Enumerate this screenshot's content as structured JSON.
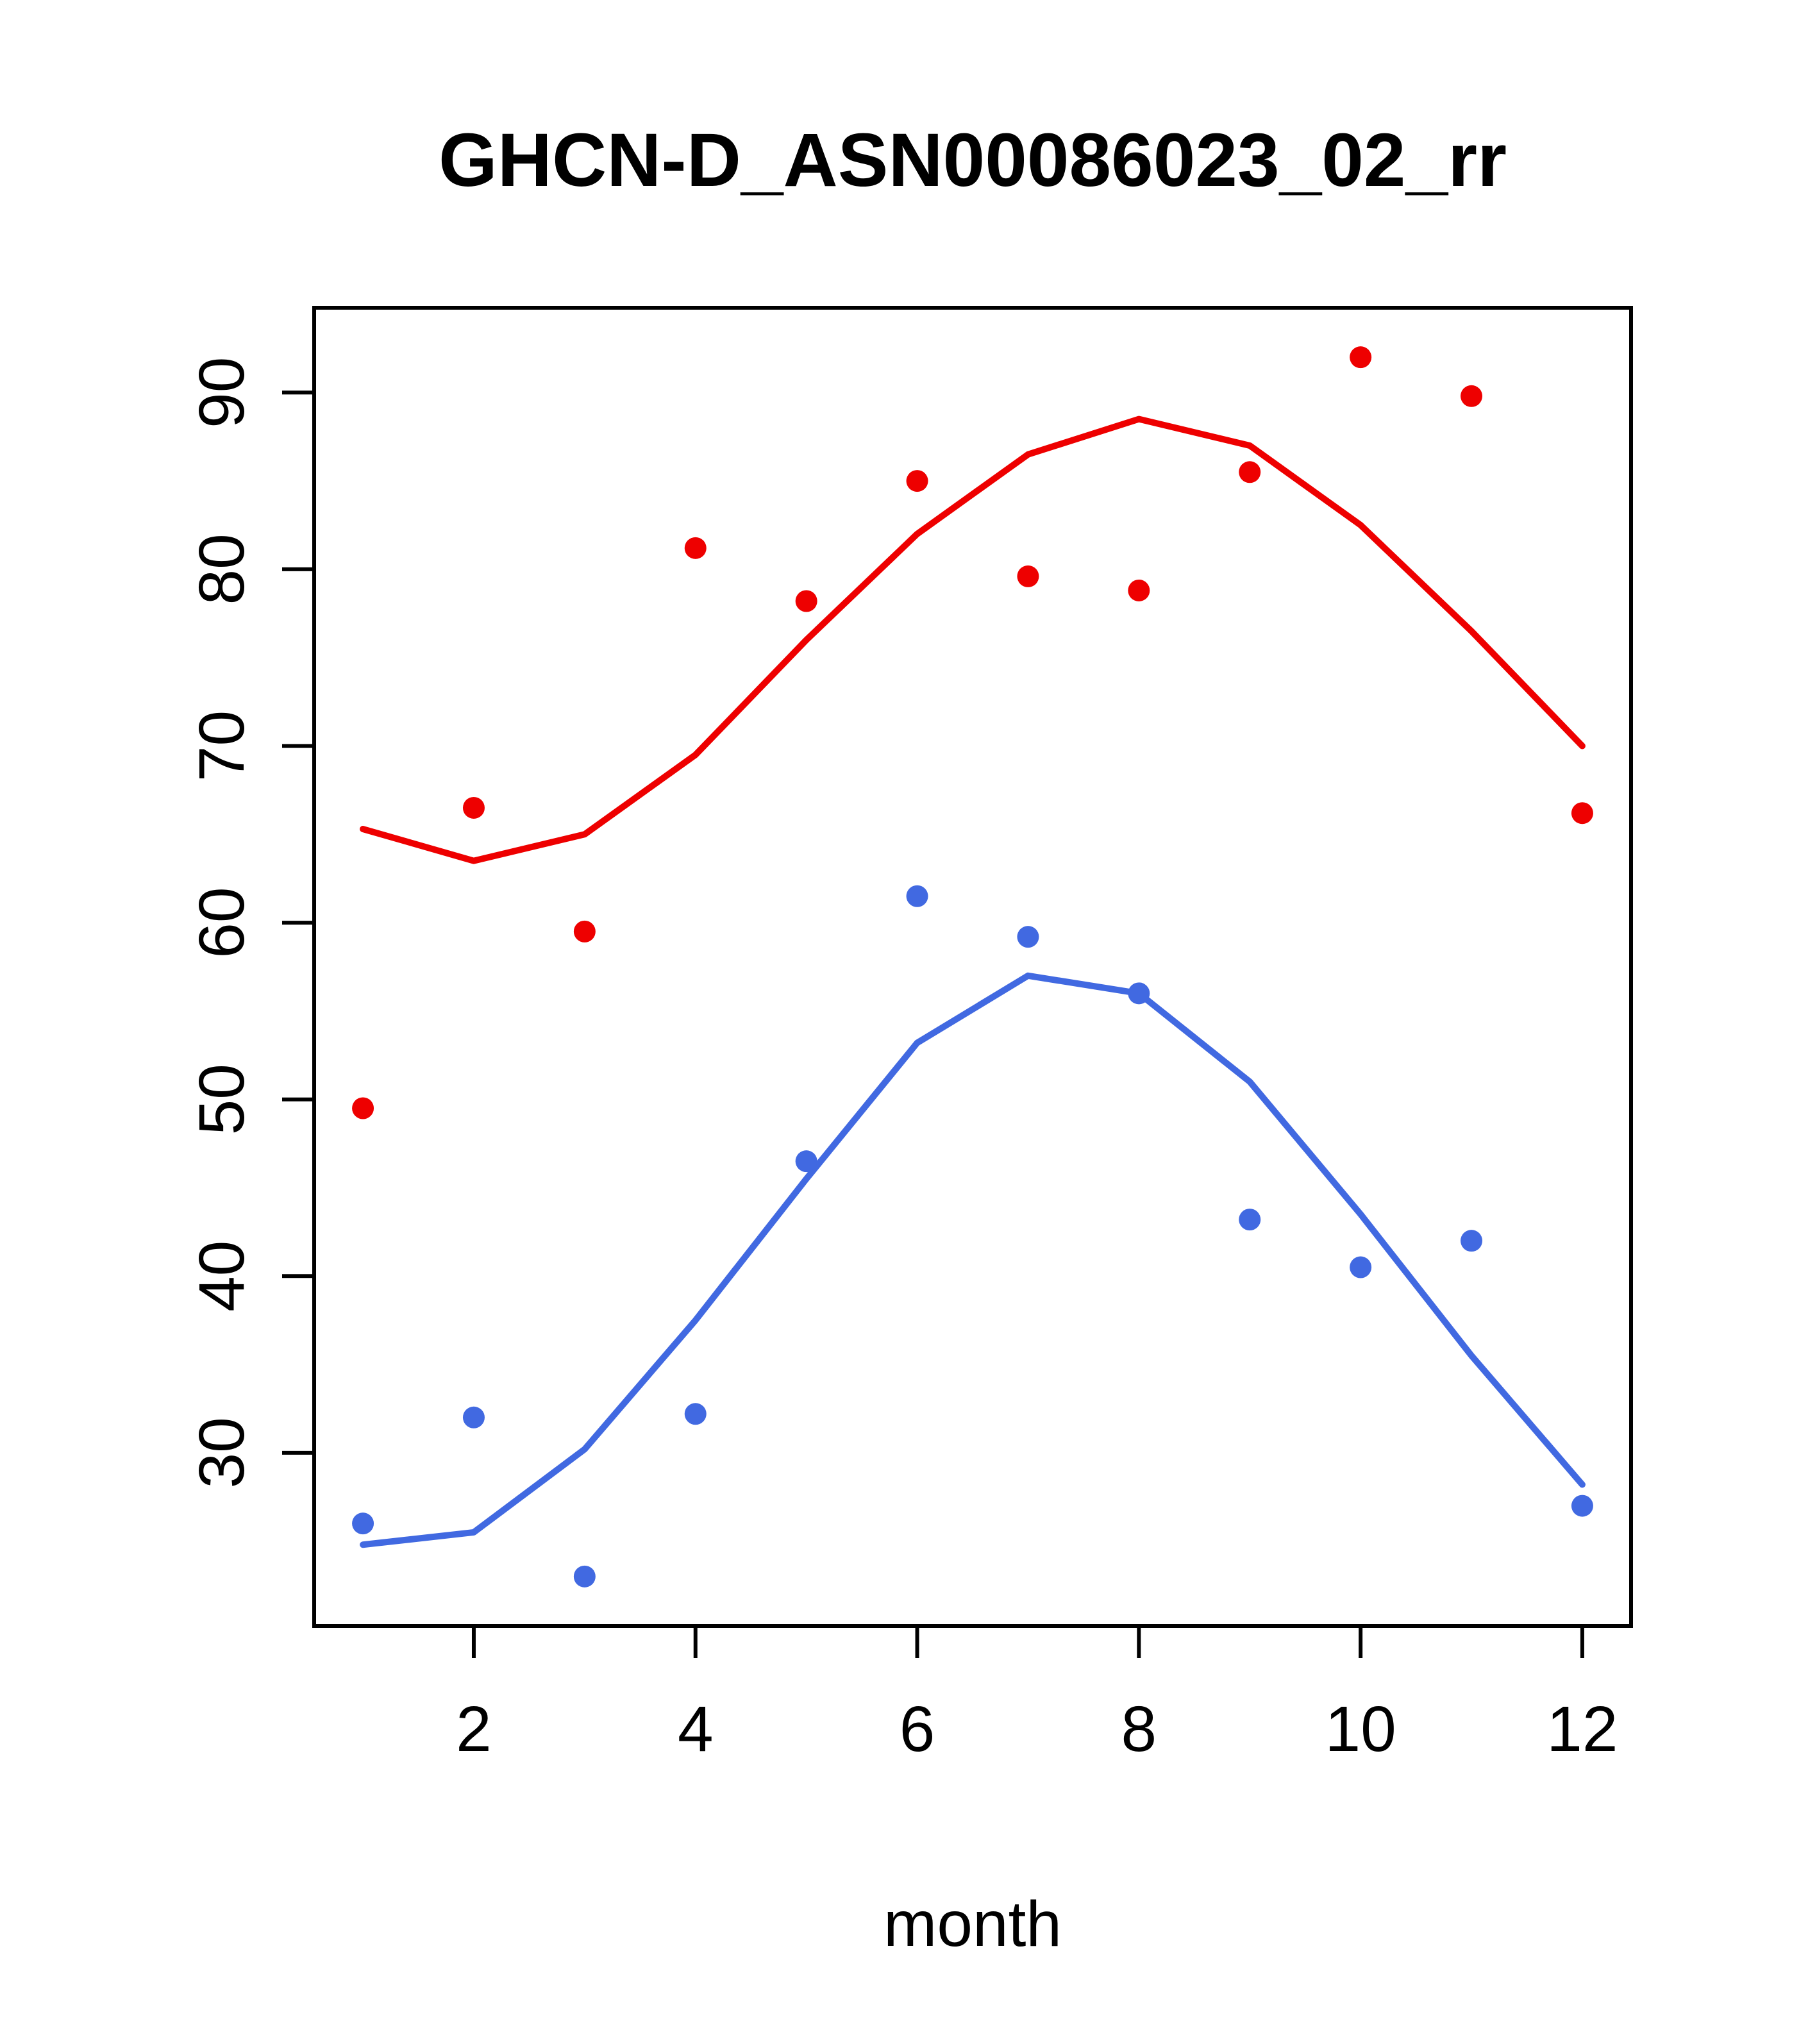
{
  "chart_data": {
    "type": "scatter",
    "title": "GHCN-D_ASN00086023_02_rr",
    "xlabel": "month",
    "ylabel": "",
    "xlim": [
      0.56,
      12.44
    ],
    "ylim": [
      20.2,
      94.8
    ],
    "x_ticks": [
      2,
      4,
      6,
      8,
      10,
      12
    ],
    "y_ticks": [
      30,
      40,
      50,
      60,
      70,
      80,
      90
    ],
    "x": [
      1,
      2,
      3,
      4,
      5,
      6,
      7,
      8,
      9,
      10,
      11,
      12
    ],
    "grid": false,
    "legend_position": "none",
    "colors": {
      "red_series": "#ee0000",
      "blue_series": "#4169e1",
      "axis": "#000000",
      "background": "#ffffff"
    },
    "series": [
      {
        "name": "red-observed-points",
        "kind": "points",
        "color": "#ee0000",
        "values": [
          49.5,
          66.5,
          59.5,
          81.2,
          78.2,
          85.0,
          79.6,
          78.8,
          85.5,
          92.0,
          89.8,
          66.2
        ]
      },
      {
        "name": "red-smooth-line",
        "kind": "line",
        "color": "#ee0000",
        "values": [
          65.3,
          63.5,
          65.0,
          69.5,
          76.0,
          82.0,
          86.5,
          88.5,
          87.0,
          82.5,
          76.5,
          70.0
        ]
      },
      {
        "name": "blue-observed-points",
        "kind": "points",
        "color": "#4169e1",
        "values": [
          26.0,
          32.0,
          23.0,
          32.2,
          46.5,
          61.5,
          59.2,
          56.0,
          43.2,
          40.5,
          42.0,
          27.0
        ]
      },
      {
        "name": "blue-smooth-line",
        "kind": "line",
        "color": "#4169e1",
        "values": [
          24.8,
          25.5,
          30.2,
          37.5,
          45.5,
          53.2,
          57.0,
          56.0,
          51.0,
          43.5,
          35.5,
          28.2
        ]
      }
    ]
  }
}
